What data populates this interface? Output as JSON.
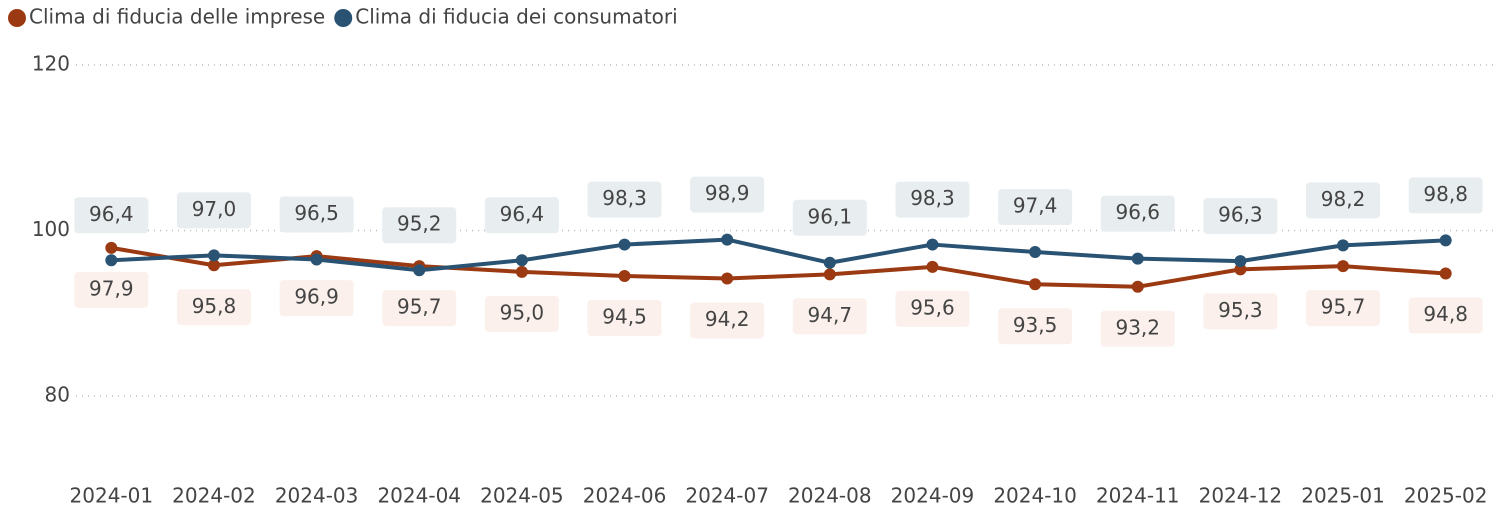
{
  "chart_data": {
    "type": "line",
    "categories": [
      "2024-01",
      "2024-02",
      "2024-03",
      "2024-04",
      "2024-05",
      "2024-06",
      "2024-07",
      "2024-08",
      "2024-09",
      "2024-10",
      "2024-11",
      "2024-12",
      "2025-01",
      "2025-02"
    ],
    "series": [
      {
        "name": "Clima di fiducia delle imprese",
        "color": "#9b3a12",
        "values": [
          97.9,
          95.8,
          96.9,
          95.7,
          95.0,
          94.5,
          94.2,
          94.7,
          95.6,
          93.5,
          93.2,
          95.3,
          95.7,
          94.8
        ],
        "value_labels": [
          "97,9",
          "95,8",
          "96,9",
          "95,7",
          "95,0",
          "94,5",
          "94,2",
          "94,7",
          "95,6",
          "93,5",
          "93,2",
          "95,3",
          "95,7",
          "94,8"
        ]
      },
      {
        "name": "Clima di fiducia dei consumatori",
        "color": "#2a5373",
        "values": [
          96.4,
          97.0,
          96.5,
          95.2,
          96.4,
          98.3,
          98.9,
          96.1,
          98.3,
          97.4,
          96.6,
          96.3,
          98.2,
          98.8
        ],
        "value_labels": [
          "96,4",
          "97,0",
          "96,5",
          "95,2",
          "96,4",
          "98,3",
          "98,9",
          "96,1",
          "98,3",
          "97,4",
          "96,6",
          "96,3",
          "98,2",
          "98,8"
        ]
      }
    ],
    "ylim": [
      80,
      120
    ],
    "yticks": [
      80,
      100,
      120
    ],
    "grid": true
  }
}
